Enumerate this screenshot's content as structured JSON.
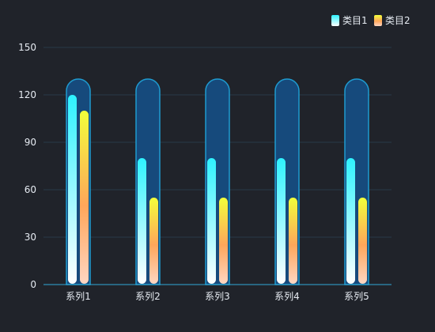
{
  "chart_data": {
    "type": "bar",
    "categories": [
      "系列1",
      "系列2",
      "系列3",
      "系列4",
      "系列5"
    ],
    "series": [
      {
        "name": "类目1",
        "values": [
          120,
          80,
          80,
          80,
          80
        ]
      },
      {
        "name": "类目2",
        "values": [
          110,
          55,
          55,
          55,
          55
        ]
      }
    ],
    "background_value": 130,
    "ylim": [
      0,
      150
    ],
    "yticks": [
      0,
      30,
      60,
      90,
      120,
      150
    ],
    "grid": true,
    "legend_position": "top-right",
    "colors": {
      "background": "#20232a",
      "grid": "#283848",
      "axis": "#2fa8d8",
      "capsule_fill": "#164a7c",
      "capsule_stroke": "#1f9bd0",
      "series1_top": "#2ef2ff",
      "series1_bottom": "#ffffff",
      "series2_top": "#f2ff3a",
      "series2_mid": "#ffa65a",
      "series2_bottom": "#ffd6c2"
    }
  }
}
